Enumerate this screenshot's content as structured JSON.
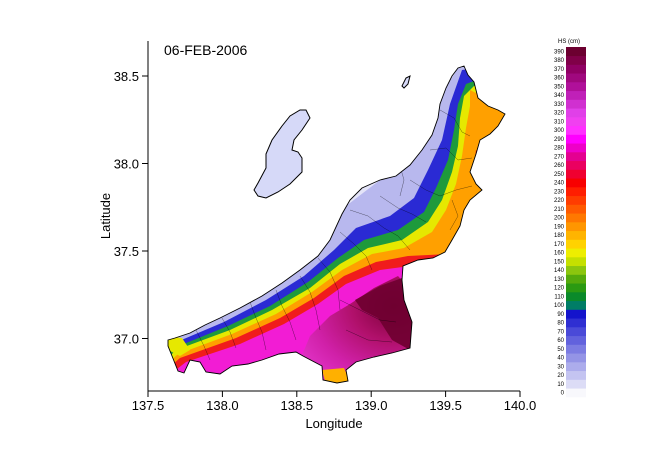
{
  "figure": {
    "date_label": "06-FEB-2006",
    "xlabel": "Longitude",
    "ylabel": "Latitude",
    "colorbar_title": "HS (cm)"
  },
  "chart_data": {
    "type": "heatmap",
    "title": "06-FEB-2006",
    "xlabel": "Longitude",
    "ylabel": "Latitude",
    "xlim": [
      137.5,
      140.0
    ],
    "ylim": [
      36.7,
      38.7
    ],
    "xticks": [
      137.5,
      138.0,
      138.5,
      139.0,
      139.5,
      140.0
    ],
    "xtick_labels": [
      "137.5",
      "138.0",
      "138.5",
      "139.0",
      "139.5",
      "140.0"
    ],
    "yticks": [
      37.0,
      37.5,
      38.0,
      38.5
    ],
    "ytick_labels": [
      "37.0",
      "37.5",
      "38.0",
      "38.5"
    ],
    "colorbar": {
      "title": "HS (cm)",
      "unit": "cm",
      "levels": [
        0,
        10,
        20,
        30,
        40,
        50,
        60,
        70,
        80,
        90,
        100,
        110,
        120,
        130,
        140,
        150,
        160,
        170,
        180,
        190,
        200,
        210,
        220,
        230,
        240,
        250,
        260,
        270,
        280,
        290,
        300,
        310,
        320,
        330,
        340,
        350,
        360,
        370,
        380,
        390
      ],
      "colors": [
        "#f8f8fc",
        "#dcdcf6",
        "#c4c4f1",
        "#acacec",
        "#9494e6",
        "#7c7ce2",
        "#6262dd",
        "#4a4ad8",
        "#2f2fd2",
        "#1414cc",
        "#007d66",
        "#0a8a2a",
        "#2b9a12",
        "#55aa0c",
        "#8cc60e",
        "#c5e000",
        "#eeee00",
        "#ffd200",
        "#ffb400",
        "#ff9600",
        "#ff7800",
        "#ff5a00",
        "#ff3c00",
        "#ff1e00",
        "#f80000",
        "#f00030",
        "#ea0060",
        "#e40090",
        "#ee00c8",
        "#ff00ff",
        "#ff30ff",
        "#f040f0",
        "#e040e8",
        "#d030d0",
        "#c020b8",
        "#b0109a",
        "#a0087e",
        "#900064",
        "#800048",
        "#6c0030"
      ]
    },
    "grid": false,
    "region_description_values": {
      "coastal_lowland_min_cm": 0,
      "coastal_lowland_max_cm": 60,
      "inland_mountain_max_cm": 390
    }
  }
}
